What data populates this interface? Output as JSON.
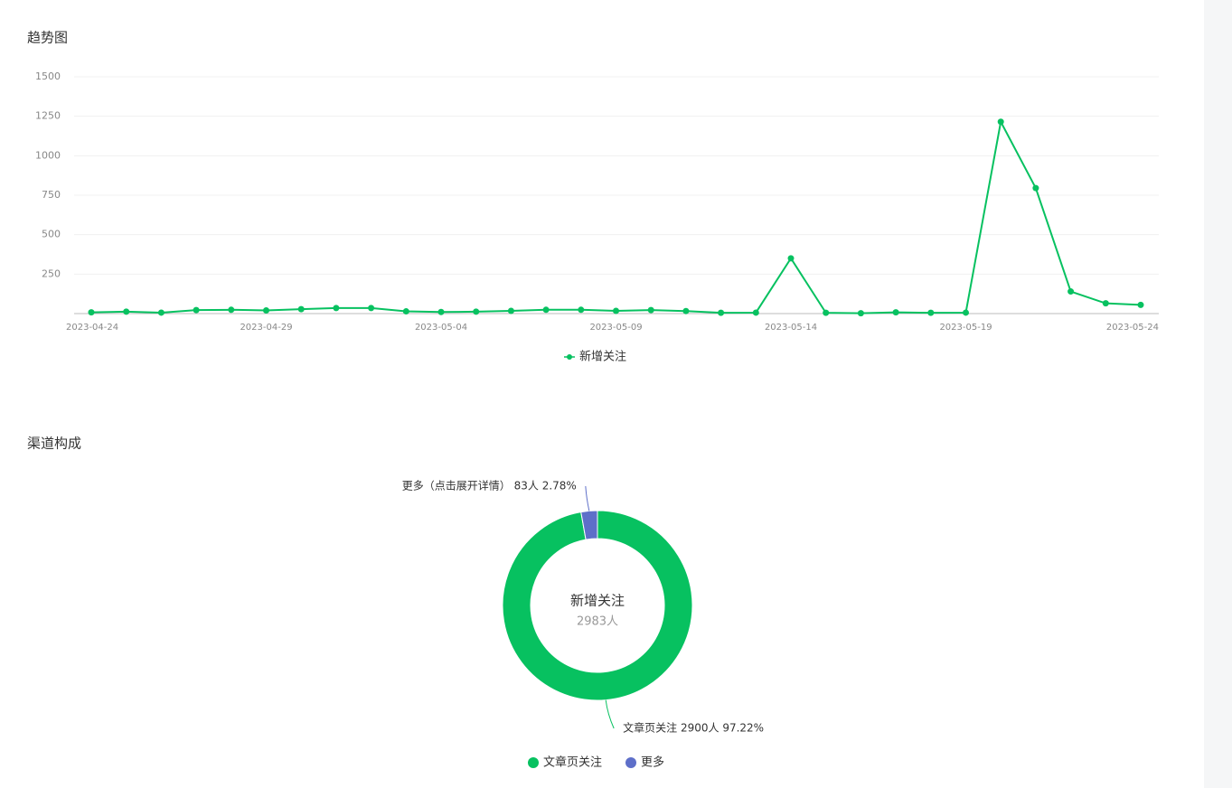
{
  "chart_data": [
    {
      "type": "line",
      "title": "趋势图",
      "categories": [
        "2023-04-24",
        null,
        null,
        null,
        null,
        "2023-04-29",
        null,
        null,
        null,
        null,
        "2023-05-04",
        null,
        null,
        null,
        null,
        "2023-05-09",
        null,
        null,
        null,
        null,
        "2023-05-14",
        null,
        null,
        null,
        null,
        "2023-05-19",
        null,
        null,
        null,
        null,
        "2023-05-24"
      ],
      "series": [
        {
          "name": "新增关注",
          "color": "#07c160",
          "values": [
            8,
            12,
            6,
            22,
            24,
            20,
            28,
            35,
            35,
            14,
            10,
            12,
            17,
            24,
            24,
            17,
            22,
            16,
            5,
            6,
            350,
            5,
            2,
            8,
            5,
            6,
            1215,
            795,
            140,
            65,
            55
          ]
        }
      ],
      "ylim": [
        0,
        1500
      ],
      "yticks": [
        250,
        500,
        750,
        1000,
        1250,
        1500
      ],
      "grid": true,
      "legend": "bottom"
    },
    {
      "type": "pie",
      "title": "渠道构成",
      "center_title": "新增关注",
      "center_value": "2983人",
      "categories": [
        "文章页关注",
        "更多"
      ],
      "values": [
        2900,
        83
      ],
      "value_labels": [
        "文章页关注 2900人 97.22%",
        "更多（点击展开详情） 83人 2.78%"
      ],
      "colors": [
        "#07c160",
        "#5e6fc9"
      ],
      "legend": "bottom"
    }
  ]
}
